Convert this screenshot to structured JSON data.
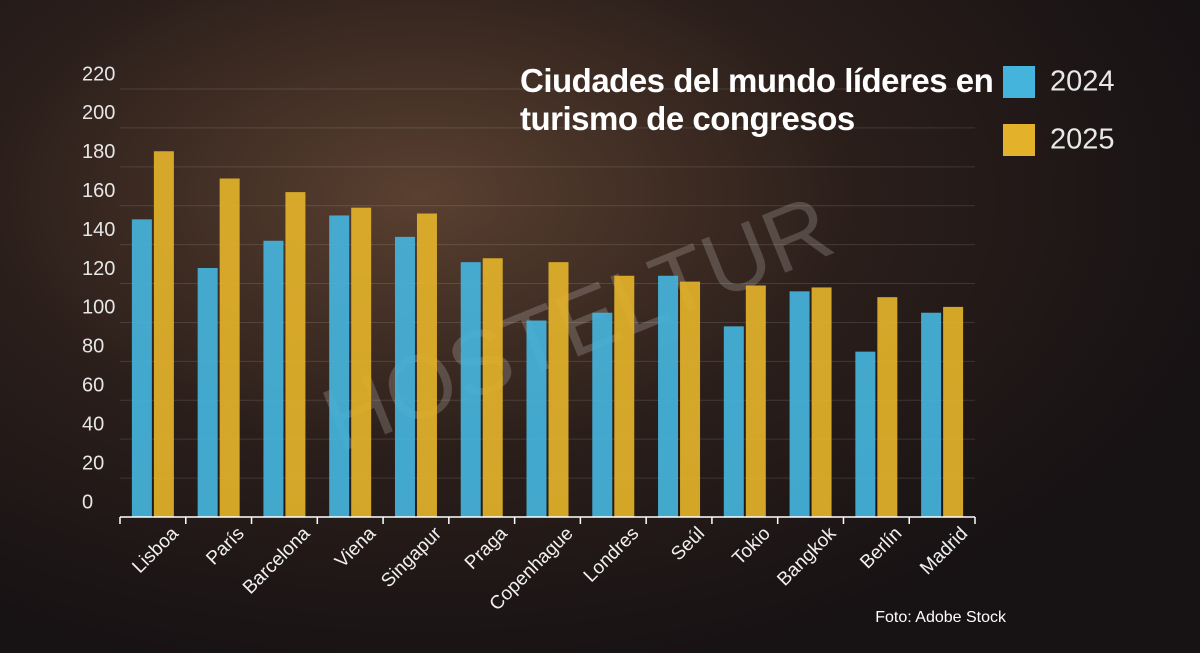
{
  "chart_data": {
    "type": "bar",
    "title": "Ciudades del mundo líderes en turismo de congresos",
    "categories": [
      "Lisboa",
      "París",
      "Barcelona",
      "Viena",
      "Singapur",
      "Praga",
      "Copenhague",
      "Londres",
      "Seúl",
      "Tokio",
      "Bangkok",
      "Berlín",
      "Madrid"
    ],
    "series": [
      {
        "name": "2024",
        "color": "#45b4dc",
        "values": [
          153,
          128,
          142,
          155,
          144,
          131,
          101,
          105,
          124,
          98,
          116,
          85,
          105
        ]
      },
      {
        "name": "2025",
        "color": "#e3b22a",
        "values": [
          188,
          174,
          167,
          159,
          156,
          133,
          131,
          124,
          121,
          119,
          118,
          113,
          108
        ]
      }
    ],
    "ylim": [
      0,
      220
    ],
    "yticks": [
      0,
      20,
      40,
      60,
      80,
      100,
      120,
      140,
      160,
      180,
      200,
      220
    ],
    "grid": true,
    "legend": "top-right"
  },
  "watermark": "HOSTELTUR",
  "photo_credit": "Foto: Adobe Stock"
}
